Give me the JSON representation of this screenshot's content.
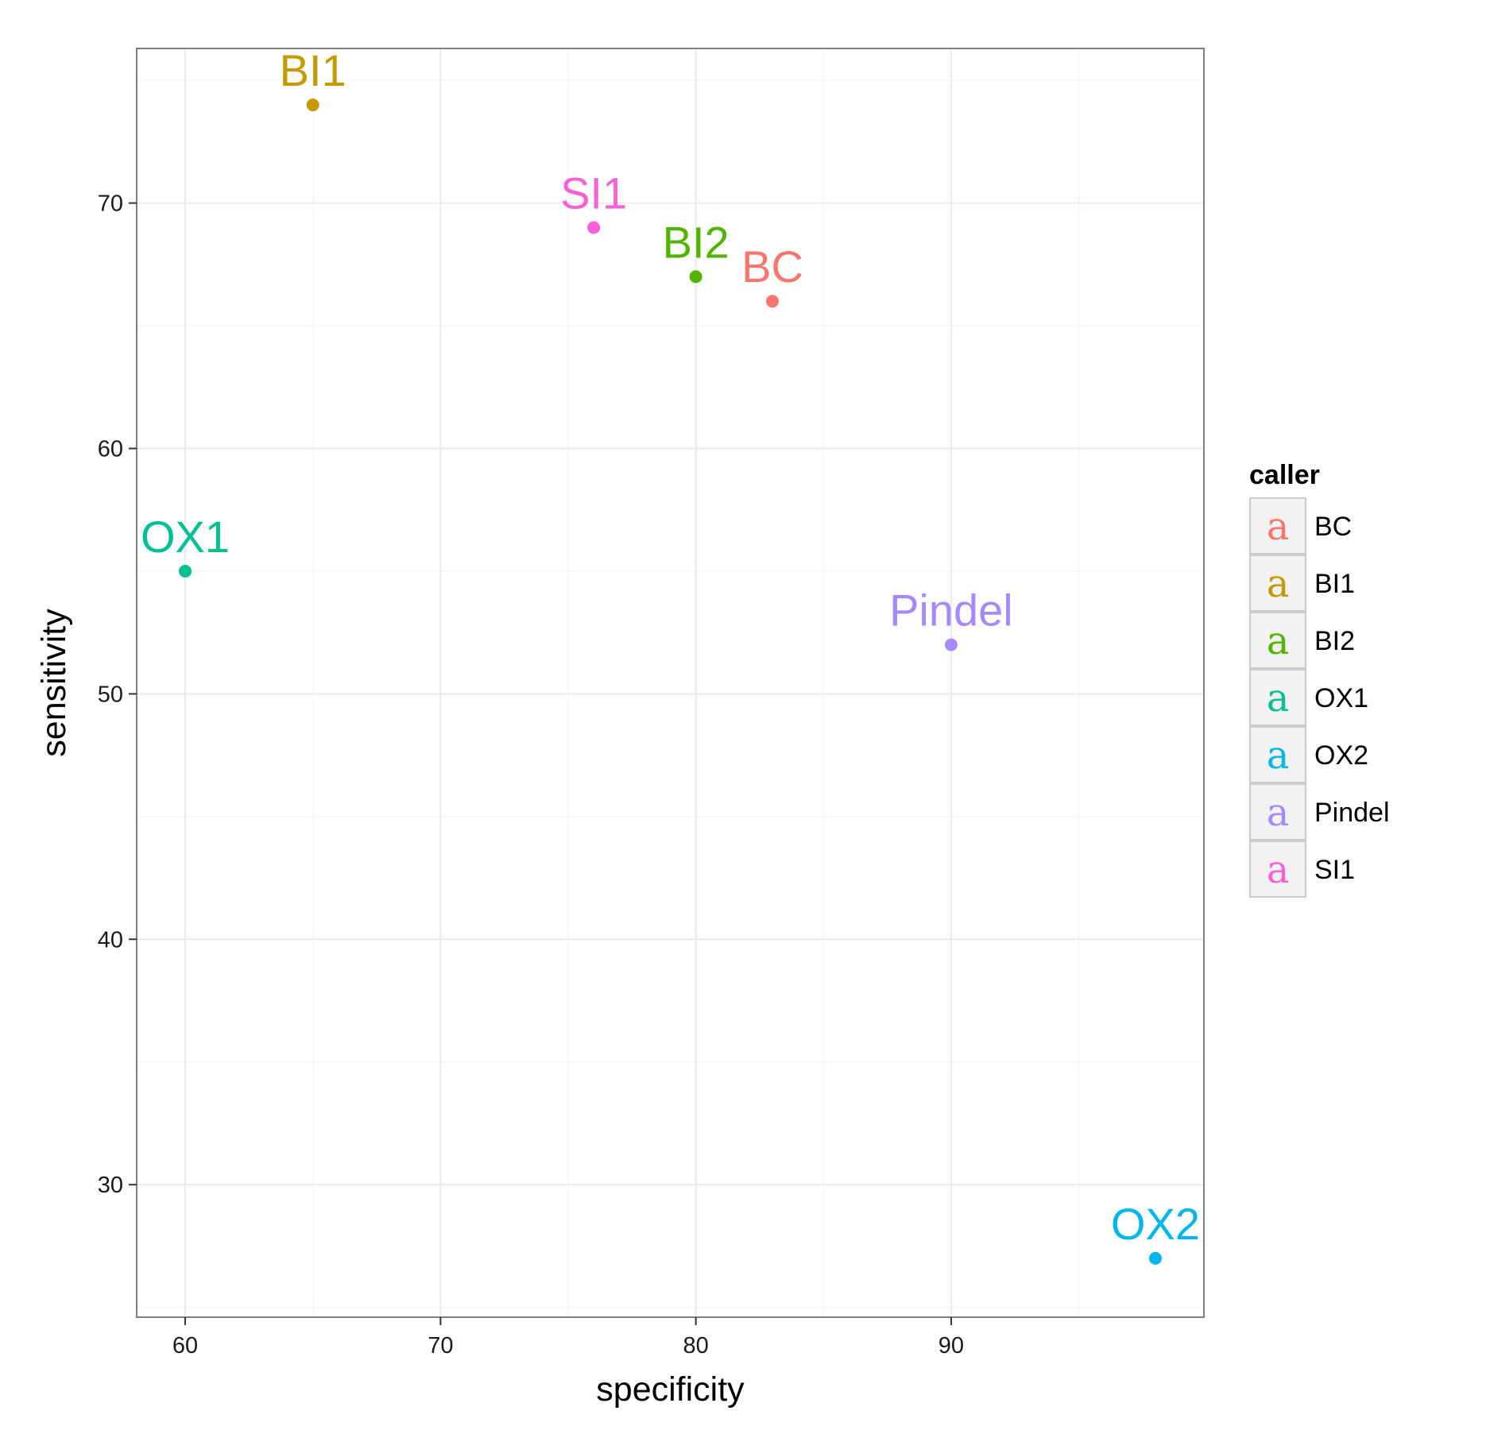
{
  "chart_data": {
    "type": "scatter",
    "title": "",
    "xlabel": "specificity",
    "ylabel": "sensitivity",
    "xlim": [
      58.1,
      99.9
    ],
    "ylim": [
      24.6,
      76.3
    ],
    "x_ticks": [
      60,
      70,
      80,
      90
    ],
    "y_ticks": [
      30,
      40,
      50,
      60,
      70
    ],
    "grid": true,
    "legend": {
      "title": "caller",
      "placement": "right",
      "key_glyph": "a"
    },
    "series": [
      {
        "name": "BC",
        "x": 83,
        "y": 66,
        "label": "BC",
        "color": "#F8766D"
      },
      {
        "name": "BI1",
        "x": 65,
        "y": 74,
        "label": "BI1",
        "color": "#C49A00"
      },
      {
        "name": "BI2",
        "x": 80,
        "y": 67,
        "label": "BI2",
        "color": "#53B400"
      },
      {
        "name": "OX1",
        "x": 60,
        "y": 55,
        "label": "OX1",
        "color": "#00C094"
      },
      {
        "name": "OX2",
        "x": 98,
        "y": 27,
        "label": "OX2",
        "color": "#00B6EB"
      },
      {
        "name": "Pindel",
        "x": 90,
        "y": 52,
        "label": "Pindel",
        "color": "#A58AFF"
      },
      {
        "name": "SI1",
        "x": 76,
        "y": 69,
        "label": "SI1",
        "color": "#FB61D7"
      }
    ]
  }
}
